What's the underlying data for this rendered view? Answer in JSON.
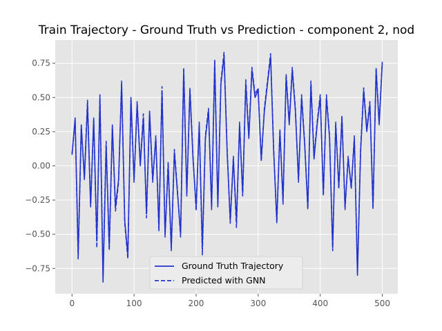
{
  "chart_data": {
    "type": "line",
    "title": "Train Trajectory - Ground Truth vs Prediction - component 2, nod",
    "xlabel": "",
    "ylabel": "",
    "xlim": [
      -27,
      525
    ],
    "ylim": [
      -0.935,
      0.92
    ],
    "grid": true,
    "legend_position": "lower-center",
    "x_ticks": [
      0,
      100,
      200,
      300,
      400,
      500
    ],
    "y_ticks": [
      -0.75,
      -0.5,
      -0.25,
      0.0,
      0.25,
      0.5,
      0.75
    ],
    "x_tick_labels": [
      "0",
      "100",
      "200",
      "300",
      "400",
      "500"
    ],
    "y_tick_labels": [
      "−0.75",
      "−0.50",
      "−0.25",
      "0.00",
      "0.25",
      "0.50",
      "0.75"
    ],
    "colors": {
      "background": "#e5e5e5",
      "grid": "#ffffff",
      "line": "#2233cc"
    },
    "x": [
      0,
      5,
      10,
      15,
      20,
      25,
      30,
      35,
      40,
      45,
      50,
      55,
      60,
      65,
      70,
      75,
      80,
      85,
      90,
      95,
      100,
      105,
      110,
      115,
      120,
      125,
      130,
      135,
      140,
      145,
      150,
      155,
      160,
      165,
      170,
      175,
      180,
      185,
      190,
      195,
      200,
      205,
      210,
      215,
      220,
      225,
      230,
      235,
      240,
      245,
      250,
      255,
      260,
      265,
      270,
      275,
      280,
      285,
      290,
      295,
      300,
      305,
      310,
      315,
      320,
      325,
      330,
      335,
      340,
      345,
      350,
      355,
      360,
      365,
      370,
      375,
      380,
      385,
      390,
      395,
      400,
      405,
      410,
      415,
      420,
      425,
      430,
      435,
      440,
      445,
      450,
      455,
      460,
      465,
      470,
      475,
      480,
      485,
      490,
      495,
      500
    ],
    "series": [
      {
        "name": "Ground Truth Trajectory",
        "style": "solid",
        "values": [
          0.08,
          0.35,
          -0.65,
          0.3,
          -0.1,
          0.45,
          -0.3,
          0.35,
          -0.55,
          0.5,
          -0.85,
          0.15,
          -0.6,
          0.3,
          -0.3,
          -0.1,
          0.6,
          -0.4,
          -0.65,
          0.5,
          -0.1,
          0.45,
          0.0,
          0.35,
          -0.35,
          0.4,
          -0.1,
          0.2,
          -0.45,
          0.55,
          -0.5,
          0.0,
          -0.6,
          0.1,
          -0.2,
          -0.5,
          0.7,
          -0.2,
          0.55,
          0.05,
          -0.3,
          0.3,
          -0.6,
          0.2,
          0.4,
          -0.3,
          0.75,
          -0.3,
          0.6,
          0.8,
          0.1,
          -0.4,
          0.05,
          -0.4,
          0.3,
          -0.2,
          0.6,
          0.2,
          0.7,
          0.5,
          0.55,
          0.05,
          0.4,
          0.6,
          0.8,
          0.1,
          -0.4,
          0.25,
          -0.25,
          0.65,
          0.3,
          0.7,
          0.4,
          -0.1,
          0.5,
          0.15,
          -0.3,
          0.6,
          0.05,
          0.3,
          0.5,
          -0.2,
          0.5,
          0.2,
          -0.6,
          0.3,
          -0.15,
          0.35,
          -0.3,
          0.05,
          -0.15,
          0.2,
          -0.8,
          0.1,
          0.55,
          0.25,
          0.45,
          -0.3,
          0.7,
          0.3,
          0.75
        ]
      },
      {
        "name": "Predicted with GNN",
        "style": "dashed",
        "values": [
          0.09,
          0.33,
          -0.68,
          0.28,
          -0.08,
          0.48,
          -0.28,
          0.33,
          -0.6,
          0.52,
          -0.8,
          0.18,
          -0.62,
          0.28,
          -0.33,
          -0.12,
          0.62,
          -0.42,
          -0.68,
          0.48,
          -0.12,
          0.47,
          0.02,
          0.38,
          -0.38,
          0.38,
          -0.12,
          0.22,
          -0.48,
          0.58,
          -0.52,
          0.03,
          -0.62,
          0.12,
          -0.18,
          -0.52,
          0.72,
          -0.22,
          0.57,
          0.07,
          -0.33,
          0.32,
          -0.65,
          0.22,
          0.42,
          -0.32,
          0.78,
          -0.28,
          0.62,
          0.83,
          0.12,
          -0.42,
          0.07,
          -0.45,
          0.32,
          -0.22,
          0.63,
          0.22,
          0.72,
          0.52,
          0.57,
          0.03,
          0.42,
          0.62,
          0.82,
          0.12,
          -0.42,
          0.27,
          -0.28,
          0.67,
          0.32,
          0.72,
          0.42,
          -0.12,
          0.52,
          0.17,
          -0.32,
          0.62,
          0.07,
          0.32,
          0.52,
          -0.22,
          0.52,
          0.22,
          -0.62,
          0.32,
          -0.17,
          0.37,
          -0.32,
          0.07,
          -0.17,
          0.22,
          -0.78,
          0.12,
          0.57,
          0.27,
          0.47,
          -0.32,
          0.72,
          0.32,
          0.76
        ]
      }
    ]
  }
}
